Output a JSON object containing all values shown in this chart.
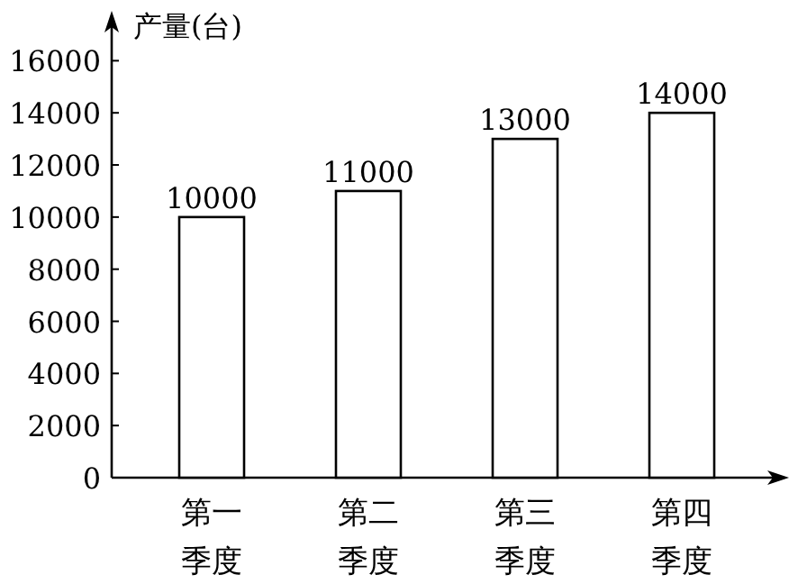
{
  "chart_data": {
    "type": "bar",
    "ylabel": "产量(台)",
    "categories": [
      "第一季度",
      "第二季度",
      "第三季度",
      "第四季度"
    ],
    "values": [
      10000,
      11000,
      13000,
      14000
    ],
    "color": "#ffffff",
    "data_labels": true,
    "ylim": [
      0,
      17500
    ],
    "yticks": [
      0,
      2000,
      4000,
      6000,
      8000,
      10000,
      12000,
      14000,
      16000
    ],
    "grid": false
  }
}
